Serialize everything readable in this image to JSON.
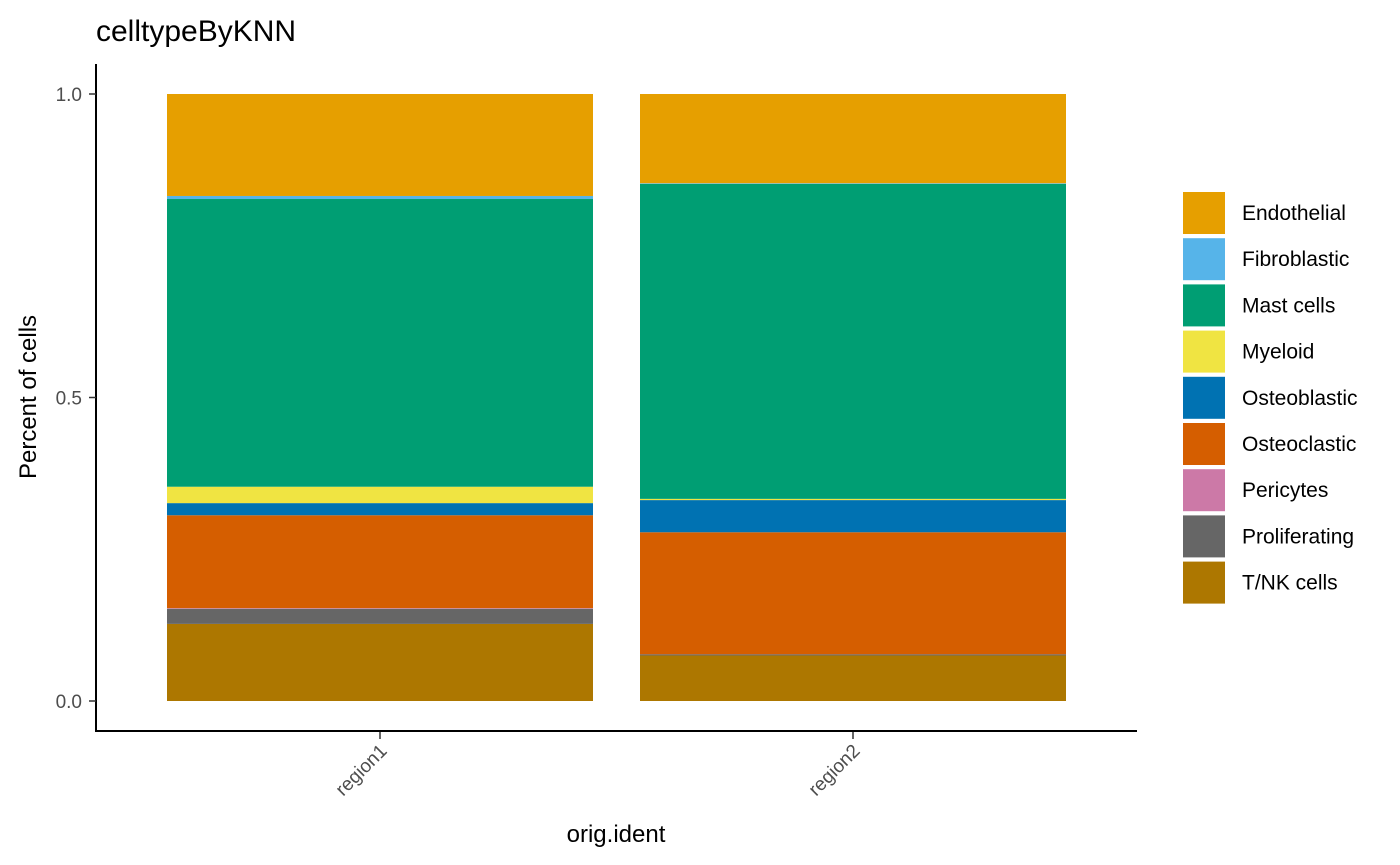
{
  "chart_data": {
    "type": "bar",
    "stacked": true,
    "title": "celltypeByKNN",
    "xlabel": "orig.ident",
    "ylabel": "Percent of cells",
    "categories": [
      "region1",
      "region2"
    ],
    "ylim": [
      0,
      1
    ],
    "yticks": [
      "0.0",
      "0.5",
      "1.0"
    ],
    "grid": false,
    "legend_position": "right",
    "series": [
      {
        "name": "Endothelial",
        "color": "#E69F00",
        "values": [
          0.168,
          0.147
        ]
      },
      {
        "name": "Fibroblastic",
        "color": "#56B4E9",
        "values": [
          0.005,
          0.001
        ]
      },
      {
        "name": "Mast cells",
        "color": "#009E73",
        "values": [
          0.474,
          0.519
        ]
      },
      {
        "name": "Myeloid",
        "color": "#F0E442",
        "values": [
          0.027,
          0.002
        ]
      },
      {
        "name": "Osteoblastic",
        "color": "#0072B2",
        "values": [
          0.02,
          0.053
        ]
      },
      {
        "name": "Osteoclastic",
        "color": "#D55E00",
        "values": [
          0.153,
          0.201
        ]
      },
      {
        "name": "Pericytes",
        "color": "#CC79A7",
        "values": [
          0.001,
          0.0
        ]
      },
      {
        "name": "Proliferating",
        "color": "#666666",
        "values": [
          0.025,
          0.002
        ]
      },
      {
        "name": "T/NK cells",
        "color": "#AD7700",
        "values": [
          0.127,
          0.075
        ]
      }
    ]
  }
}
